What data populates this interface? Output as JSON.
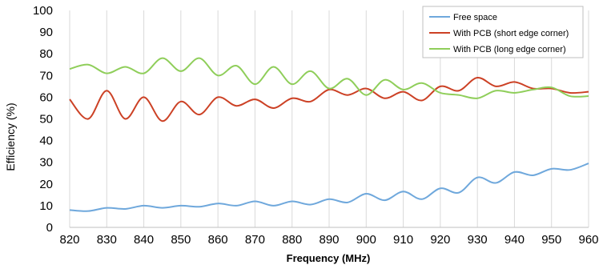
{
  "chart_data": {
    "type": "line",
    "title": "",
    "xlabel": "Frequency (MHz)",
    "ylabel": "Efficiency (%)",
    "xlim": [
      820,
      960
    ],
    "ylim": [
      0,
      100
    ],
    "x_ticks": [
      "820",
      "830",
      "840",
      "850",
      "860",
      "870",
      "880",
      "890",
      "900",
      "910",
      "920",
      "930",
      "940",
      "950",
      "960"
    ],
    "y_ticks": [
      "0",
      "10",
      "20",
      "30",
      "40",
      "50",
      "60",
      "70",
      "80",
      "90",
      "100"
    ],
    "grid": "vertical",
    "legend_position": "top-right",
    "series": [
      {
        "name": "Free space",
        "color": "#6fa8dc",
        "x": [
          820,
          825,
          830,
          835,
          840,
          845,
          850,
          855,
          860,
          865,
          870,
          875,
          880,
          885,
          890,
          895,
          900,
          905,
          910,
          915,
          920,
          925,
          930,
          935,
          940,
          945,
          950,
          955,
          960
        ],
        "y": [
          8,
          7.5,
          9,
          8.5,
          10,
          9,
          10,
          9.5,
          11,
          10,
          12,
          10,
          12,
          10.5,
          13,
          11.5,
          15.5,
          12.5,
          16.5,
          13,
          18,
          16,
          23,
          20.5,
          25.5,
          24,
          27,
          26.5,
          29.5
        ]
      },
      {
        "name": "With PCB (short edge corner)",
        "color": "#cc4125",
        "x": [
          820,
          825,
          830,
          835,
          840,
          845,
          850,
          855,
          860,
          865,
          870,
          875,
          880,
          885,
          890,
          895,
          900,
          905,
          910,
          915,
          920,
          925,
          930,
          935,
          940,
          945,
          950,
          955,
          960
        ],
        "y": [
          59,
          50,
          63,
          50,
          60,
          49,
          58,
          52,
          60,
          56,
          59,
          55,
          59.5,
          58,
          63.5,
          61,
          64,
          59.5,
          62.5,
          58.5,
          65,
          63,
          69,
          65,
          67,
          64,
          64,
          62,
          62.5
        ]
      },
      {
        "name": "With PCB (long edge corner)",
        "color": "#8fce5a",
        "x": [
          820,
          825,
          830,
          835,
          840,
          845,
          850,
          855,
          860,
          865,
          870,
          875,
          880,
          885,
          890,
          895,
          900,
          905,
          910,
          915,
          920,
          925,
          930,
          935,
          940,
          945,
          950,
          955,
          960
        ],
        "y": [
          73,
          75,
          71,
          74,
          71,
          78,
          72,
          78,
          70,
          74.5,
          66,
          74,
          66,
          72,
          64,
          68.5,
          61,
          68,
          63.5,
          66.5,
          62,
          61,
          59.5,
          63,
          62,
          63.5,
          64.5,
          60.5,
          60.5
        ]
      }
    ]
  }
}
